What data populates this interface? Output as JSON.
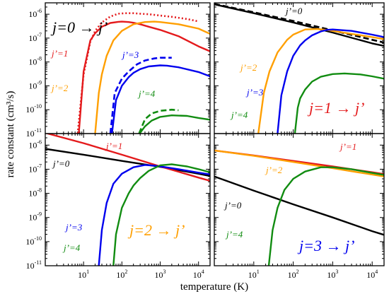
{
  "figure": {
    "xlabel": "temperature (K)",
    "ylabel": "rate constant (cm³/s)"
  },
  "chart_data": [
    {
      "id": "j0",
      "type": "line",
      "title": "j=0 → j’",
      "title_color": "#000000",
      "xscale": "log",
      "yscale": "log",
      "xlim": [
        1,
        20000
      ],
      "ylim": [
        1e-11,
        3e-06
      ],
      "series": [
        {
          "name": "j’=1",
          "color": "#e41a1c",
          "style": "solid",
          "x": [
            7.5,
            10,
            15,
            20,
            30,
            50,
            80,
            100,
            150,
            200,
            300,
            500,
            1000,
            3000,
            10000,
            20000
          ],
          "y": [
            1e-11,
            4e-09,
            8e-08,
            1.6e-07,
            3e-07,
            4.3e-07,
            4.8e-07,
            4.9e-07,
            4.7e-07,
            4.4e-07,
            3.8e-07,
            3e-07,
            2.2e-07,
            1.2e-07,
            4.5e-08,
            2.8e-08
          ]
        },
        {
          "name": "",
          "color": "#e41a1c",
          "style": "dotted",
          "x": [
            7,
            10,
            15,
            20,
            30,
            50,
            80,
            120,
            200,
            300,
            500,
            1000,
            2000,
            5000,
            10000
          ],
          "y": [
            1e-11,
            3e-09,
            7e-08,
            2e-07,
            4.5e-07,
            8e-07,
            1.05e-06,
            1.1e-06,
            1.1e-06,
            1.05e-06,
            1e-06,
            8.8e-07,
            7.8e-07,
            6.3e-07,
            5e-07
          ]
        },
        {
          "name": "j’=2",
          "color": "#ff9f00",
          "style": "solid",
          "x": [
            20,
            25,
            30,
            40,
            60,
            100,
            200,
            400,
            700,
            1000,
            3000,
            10000,
            20000
          ],
          "y": [
            1e-11,
            5e-10,
            3e-09,
            1.8e-08,
            8e-08,
            2e-07,
            3.8e-07,
            4.7e-07,
            4.9e-07,
            4.7e-07,
            3.8e-07,
            2.5e-07,
            1.5e-07
          ]
        },
        {
          "name": "j’=3",
          "color": "#0000ee",
          "style": "solid",
          "x": [
            55,
            70,
            100,
            150,
            200,
            300,
            500,
            1000,
            1500,
            3000,
            10000,
            20000
          ],
          "y": [
            1e-11,
            2.5e-10,
            1e-09,
            2.3e-09,
            3.5e-09,
            5e-09,
            6.5e-09,
            7.2e-09,
            7e-09,
            6e-09,
            3.8e-09,
            2.5e-09
          ]
        },
        {
          "name": "",
          "color": "#0000ee",
          "style": "dashed",
          "x": [
            50,
            65,
            100,
            150,
            250,
            400,
            700,
            1000,
            1500,
            2000
          ],
          "y": [
            1e-11,
            5e-10,
            2e-09,
            4e-09,
            8e-09,
            1.15e-08,
            1.4e-08,
            1.5e-08,
            1.5e-08,
            1.5e-08
          ]
        },
        {
          "name": "j’=4",
          "color": "#118c11",
          "style": "solid",
          "x": [
            290,
            400,
            600,
            1000,
            2000,
            5000,
            10000,
            20000
          ],
          "y": [
            1e-11,
            2e-11,
            3.5e-11,
            5e-11,
            5.8e-11,
            5.5e-11,
            4.5e-11,
            3.8e-11
          ]
        },
        {
          "name": "",
          "color": "#118c11",
          "style": "dashed",
          "x": [
            280,
            400,
            600,
            1000,
            2000,
            3000
          ],
          "y": [
            1e-11,
            4e-11,
            7e-11,
            9e-11,
            1e-10,
            9.5e-11
          ]
        }
      ]
    },
    {
      "id": "j1",
      "type": "line",
      "title": "j=1 → j’",
      "title_color": "#e41a1c",
      "xscale": "log",
      "yscale": "log",
      "xlim": [
        1,
        20000
      ],
      "ylim": [
        1e-11,
        3e-06
      ],
      "series": [
        {
          "name": "j’=0",
          "color": "#000000",
          "style": "solid",
          "x": [
            1,
            10,
            100,
            1000,
            10000,
            20000
          ],
          "y": [
            2.6e-06,
            1.1e-06,
            4.5e-07,
            1.7e-07,
            6e-08,
            4.7e-08
          ]
        },
        {
          "name": "",
          "color": "#000000",
          "style": "dashed",
          "x": [
            1,
            10,
            100,
            1000,
            10000,
            20000
          ],
          "y": [
            2.7e-06,
            1.2e-06,
            5.2e-07,
            2.1e-07,
            8.5e-08,
            6.5e-08
          ]
        },
        {
          "name": "j’=2",
          "color": "#ff9f00",
          "style": "solid",
          "x": [
            13,
            18,
            25,
            40,
            70,
            100,
            200,
            400,
            700,
            1000,
            3000,
            10000,
            20000
          ],
          "y": [
            1e-11,
            5e-10,
            4e-09,
            2.5e-08,
            8.5e-08,
            1.4e-07,
            2.3e-07,
            2.4e-07,
            2.2e-07,
            2e-07,
            1.5e-07,
            1.1e-07,
            9e-08
          ]
        },
        {
          "name": "j’=3",
          "color": "#0000ee",
          "style": "solid",
          "x": [
            40,
            50,
            70,
            100,
            150,
            200,
            300,
            500,
            700,
            1000,
            3000,
            10000,
            20000
          ],
          "y": [
            1e-11,
            4e-10,
            4e-09,
            1.8e-08,
            5e-08,
            8e-08,
            1.3e-07,
            1.9e-07,
            2.2e-07,
            2.3e-07,
            2e-07,
            1.4e-07,
            1.1e-07
          ]
        },
        {
          "name": "j’=4",
          "color": "#118c11",
          "style": "solid",
          "x": [
            110,
            130,
            150,
            200,
            300,
            500,
            1000,
            2000,
            5000,
            10000,
            20000
          ],
          "y": [
            1e-11,
            1.2e-10,
            3e-10,
            7e-10,
            1.5e-09,
            2.4e-09,
            3.1e-09,
            3.3e-09,
            3e-09,
            2.5e-09,
            2e-09
          ]
        }
      ]
    },
    {
      "id": "j2",
      "type": "line",
      "title": "j=2 → j’",
      "title_color": "#ff9f00",
      "xscale": "log",
      "yscale": "log",
      "xlim": [
        1,
        20000
      ],
      "ylim": [
        1e-11,
        3e-06
      ],
      "series": [
        {
          "name": "j’=0",
          "color": "#000000",
          "style": "solid",
          "x": [
            1,
            10,
            100,
            1000,
            10000,
            20000
          ],
          "y": [
            7e-07,
            4e-07,
            2.2e-07,
            1.25e-07,
            6.5e-08,
            5.2e-08
          ]
        },
        {
          "name": "j’=1",
          "color": "#e41a1c",
          "style": "solid",
          "x": [
            1,
            10,
            100,
            1000,
            10000,
            20000
          ],
          "y": [
            3.2e-06,
            1.2e-06,
            4e-07,
            1.3e-07,
            4.5e-08,
            3.3e-08
          ]
        },
        {
          "name": "j’=3",
          "color": "#0000ee",
          "style": "solid",
          "x": [
            25,
            30,
            40,
            60,
            100,
            200,
            400,
            700,
            1000,
            3000,
            10000,
            20000
          ],
          "y": [
            1e-11,
            3e-10,
            4e-09,
            2.5e-08,
            6.5e-08,
            1.2e-07,
            1.5e-07,
            1.4e-07,
            1.3e-07,
            1e-07,
            7.2e-08,
            6.1e-08
          ]
        },
        {
          "name": "j’=4",
          "color": "#118c11",
          "style": "solid",
          "x": [
            60,
            70,
            100,
            150,
            200,
            300,
            500,
            1000,
            2000,
            5000,
            10000,
            20000
          ],
          "y": [
            1e-11,
            2e-10,
            2.5e-09,
            1e-08,
            2.1e-08,
            4.3e-08,
            8.5e-08,
            1.45e-07,
            1.6e-07,
            1.3e-07,
            1e-07,
            7.5e-08
          ]
        }
      ]
    },
    {
      "id": "j3",
      "type": "line",
      "title": "j=3 → j’",
      "title_color": "#0000ee",
      "xscale": "log",
      "yscale": "log",
      "xlim": [
        1,
        20000
      ],
      "ylim": [
        1e-11,
        3e-06
      ],
      "series": [
        {
          "name": "j’=0",
          "color": "#000000",
          "style": "solid",
          "x": [
            1,
            10,
            100,
            1000,
            10000,
            20000
          ],
          "y": [
            5e-08,
            1.3e-08,
            3.5e-09,
            1e-09,
            2.7e-10,
            1.9e-10
          ]
        },
        {
          "name": "j’=1",
          "color": "#e41a1c",
          "style": "solid",
          "x": [
            1,
            10,
            100,
            1000,
            10000,
            20000
          ],
          "y": [
            6e-07,
            3.7e-07,
            2.2e-07,
            1.3e-07,
            7.5e-08,
            6.3e-08
          ]
        },
        {
          "name": "j’=2",
          "color": "#ff9f00",
          "style": "solid",
          "x": [
            1,
            10,
            100,
            1000,
            10000,
            20000
          ],
          "y": [
            6e-07,
            3.6e-07,
            2e-07,
            1.1e-07,
            6e-08,
            5e-08
          ]
        },
        {
          "name": "j’=4",
          "color": "#118c11",
          "style": "solid",
          "x": [
            24,
            30,
            40,
            60,
            100,
            200,
            500,
            1000,
            3000,
            10000,
            20000
          ],
          "y": [
            1e-11,
            3e-10,
            2.5e-09,
            1.4e-08,
            4e-08,
            8e-08,
            1.2e-07,
            1.2e-07,
            1e-07,
            7e-08,
            5.8e-08
          ]
        }
      ]
    }
  ]
}
